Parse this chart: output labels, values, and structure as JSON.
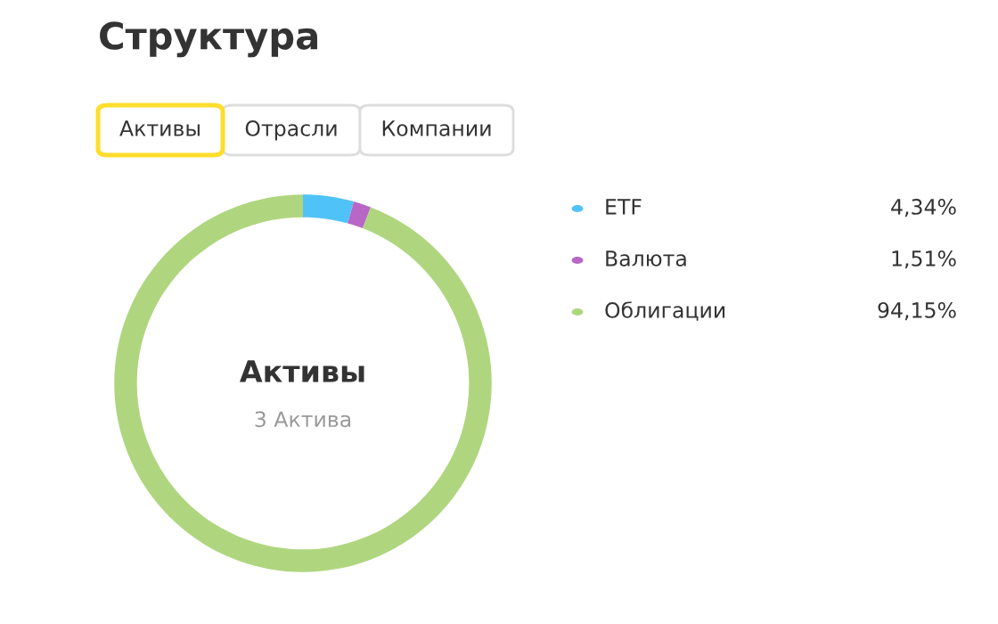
{
  "chart_data": {
    "type": "donut",
    "title": "Структура",
    "categories": [
      "ETF",
      "Валюта",
      "Облигации"
    ],
    "values": [
      4.34,
      1.51,
      94.15
    ],
    "colors": [
      "#4fc3f7",
      "#b867c6",
      "#afd67f"
    ],
    "value_labels": [
      "4,34%",
      "1,51%",
      "94,15%"
    ],
    "legend": "right",
    "annotations": [
      "Активы",
      "3 Актива",
      "Активы",
      "Отрасли",
      "Компании"
    ]
  }
}
